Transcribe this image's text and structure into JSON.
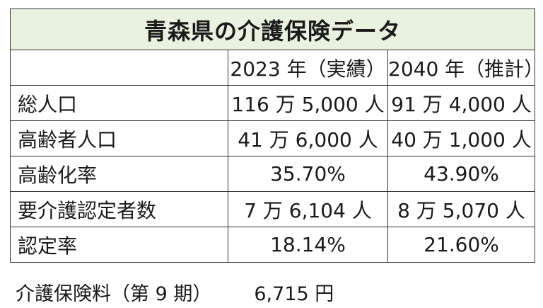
{
  "title": "青森県の介護保険データ",
  "columns": [
    "",
    "2023 年（実績）",
    "2040 年（推計）"
  ],
  "rows": [
    {
      "label": "総人口",
      "v2023": "116 万 5,000 人",
      "v2040": "91 万 4,000 人"
    },
    {
      "label": "高齢者人口",
      "v2023": "41 万 6,000 人",
      "v2040": "40 万 1,000 人"
    },
    {
      "label": "高齢化率",
      "v2023": "35.70%",
      "v2040": "43.90%"
    },
    {
      "label": "要介護認定者数",
      "v2023": "7 万 6,104 人",
      "v2040": "8 万 5,070 人"
    },
    {
      "label": "認定率",
      "v2023": "18.14%",
      "v2040": "21.60%"
    }
  ],
  "footnote": {
    "label": "介護保険料（第 9 期）",
    "amount": "6,715 円"
  }
}
